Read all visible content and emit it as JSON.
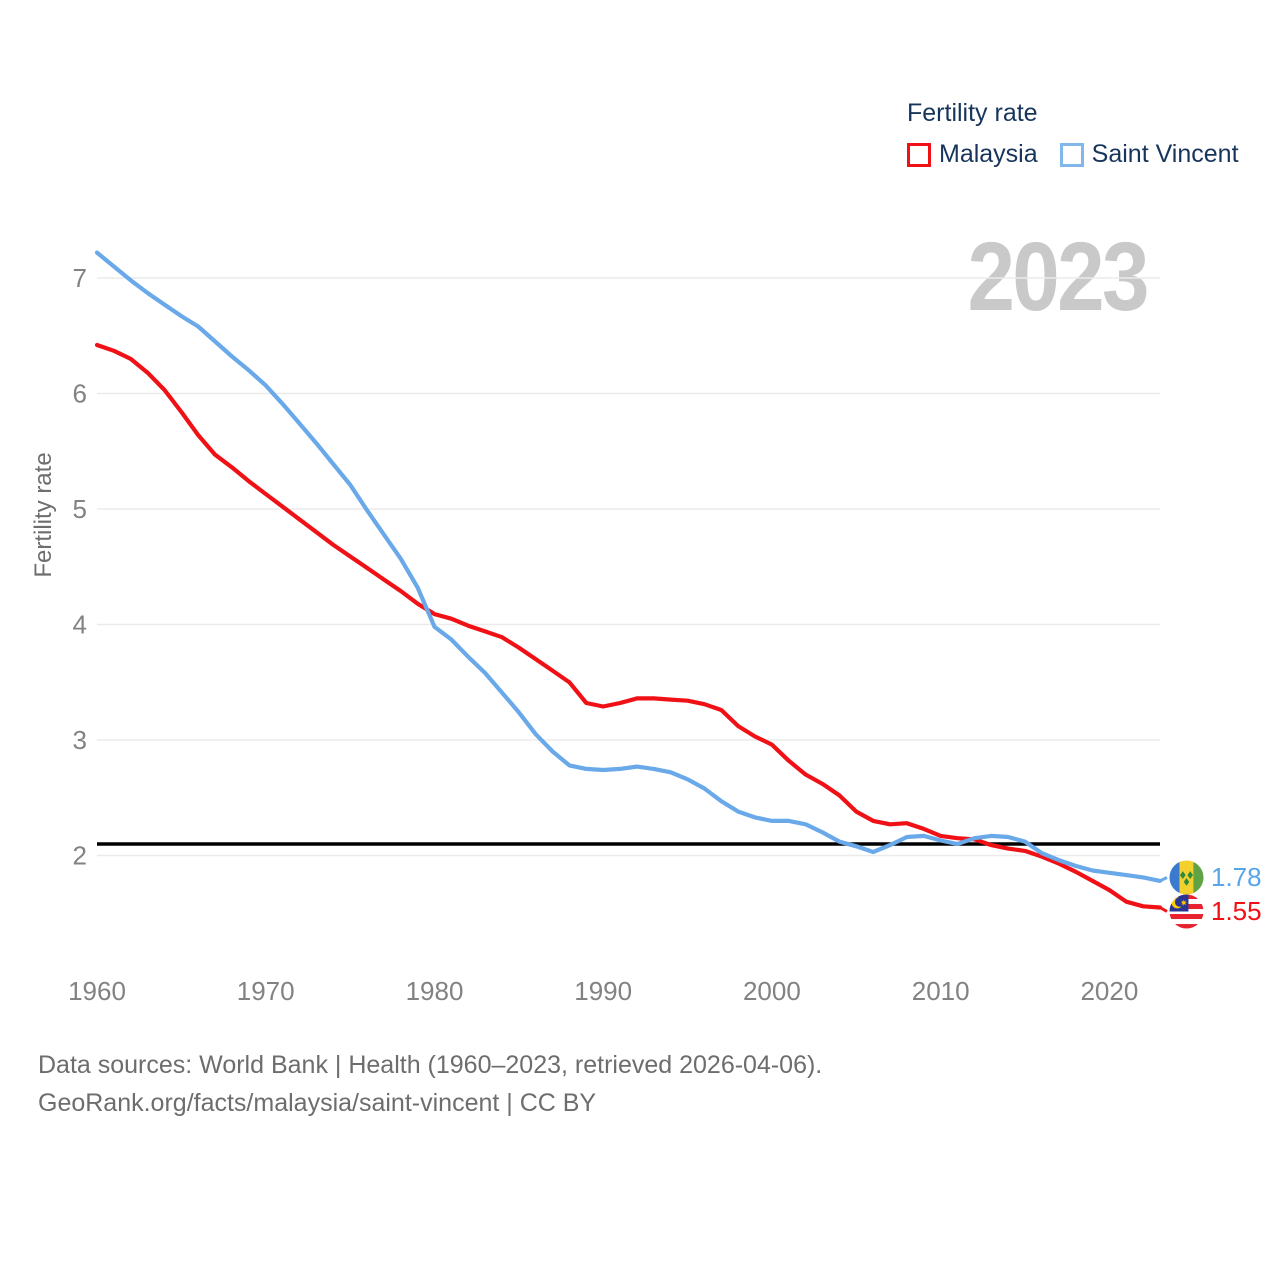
{
  "legend": {
    "title": "Fertility rate",
    "items": [
      {
        "label": "Malaysia",
        "color": "#f01116"
      },
      {
        "label": "Saint Vincent",
        "color": "#82b7ec"
      }
    ]
  },
  "watermark": "2023",
  "y_axis": {
    "title": "Fertility rate",
    "ticks": [
      7,
      6,
      5,
      4,
      3,
      2
    ]
  },
  "x_axis": {
    "ticks": [
      1960,
      1970,
      1980,
      1990,
      2000,
      2010,
      2020
    ]
  },
  "end_labels": [
    {
      "series": "Saint Vincent",
      "value": "1.78",
      "color": "#58a5e8",
      "flag": "saint-vincent-flag"
    },
    {
      "series": "Malaysia",
      "value": "1.55",
      "color": "#f01116",
      "flag": "malaysia-flag"
    }
  ],
  "footer": {
    "line1": "Data sources: World Bank | Health (1960–2023, retrieved 2026-04-06).",
    "line2": "GeoRank.org/facts/malaysia/saint-vincent | CC BY"
  },
  "chart_data": {
    "type": "line",
    "title": "Fertility rate",
    "xlabel": "",
    "ylabel": "Fertility rate",
    "xlim": [
      1960,
      2023
    ],
    "ylim": [
      1.4,
      7.4
    ],
    "grid": "horizontal-only",
    "legend_position": "top-right",
    "reference_line": {
      "value": 2.1,
      "color": "#000000"
    },
    "x": [
      1960,
      1961,
      1962,
      1963,
      1964,
      1965,
      1966,
      1967,
      1968,
      1969,
      1970,
      1971,
      1972,
      1973,
      1974,
      1975,
      1976,
      1977,
      1978,
      1979,
      1980,
      1981,
      1982,
      1983,
      1984,
      1985,
      1986,
      1987,
      1988,
      1989,
      1990,
      1991,
      1992,
      1993,
      1994,
      1995,
      1996,
      1997,
      1998,
      1999,
      2000,
      2001,
      2002,
      2003,
      2004,
      2005,
      2006,
      2007,
      2008,
      2009,
      2010,
      2011,
      2012,
      2013,
      2014,
      2015,
      2016,
      2017,
      2018,
      2019,
      2020,
      2021,
      2022,
      2023
    ],
    "series": [
      {
        "name": "Malaysia",
        "color": "#f01116",
        "final_value": 1.55,
        "values": [
          6.42,
          6.37,
          6.3,
          6.18,
          6.03,
          5.84,
          5.64,
          5.47,
          5.36,
          5.24,
          5.13,
          5.02,
          4.91,
          4.8,
          4.69,
          4.59,
          4.49,
          4.39,
          4.29,
          4.18,
          4.09,
          4.05,
          3.99,
          3.94,
          3.89,
          3.8,
          3.7,
          3.6,
          3.5,
          3.32,
          3.29,
          3.32,
          3.36,
          3.36,
          3.35,
          3.34,
          3.31,
          3.26,
          3.12,
          3.03,
          2.96,
          2.82,
          2.7,
          2.62,
          2.52,
          2.38,
          2.3,
          2.27,
          2.28,
          2.23,
          2.17,
          2.15,
          2.14,
          2.09,
          2.06,
          2.04,
          1.99,
          1.93,
          1.86,
          1.78,
          1.7,
          1.6,
          1.56,
          1.55
        ]
      },
      {
        "name": "Saint Vincent",
        "color": "#6aa9e9",
        "final_value": 1.78,
        "values": [
          7.22,
          7.1,
          6.98,
          6.87,
          6.77,
          6.67,
          6.58,
          6.45,
          6.32,
          6.2,
          6.07,
          5.91,
          5.74,
          5.57,
          5.39,
          5.21,
          4.99,
          4.78,
          4.57,
          4.32,
          3.98,
          3.87,
          3.72,
          3.58,
          3.41,
          3.24,
          3.05,
          2.9,
          2.78,
          2.75,
          2.74,
          2.75,
          2.77,
          2.75,
          2.72,
          2.66,
          2.58,
          2.47,
          2.38,
          2.33,
          2.3,
          2.3,
          2.27,
          2.2,
          2.12,
          2.08,
          2.03,
          2.09,
          2.16,
          2.17,
          2.13,
          2.1,
          2.15,
          2.17,
          2.16,
          2.12,
          2.02,
          1.96,
          1.91,
          1.87,
          1.85,
          1.83,
          1.81,
          1.78
        ]
      }
    ]
  }
}
